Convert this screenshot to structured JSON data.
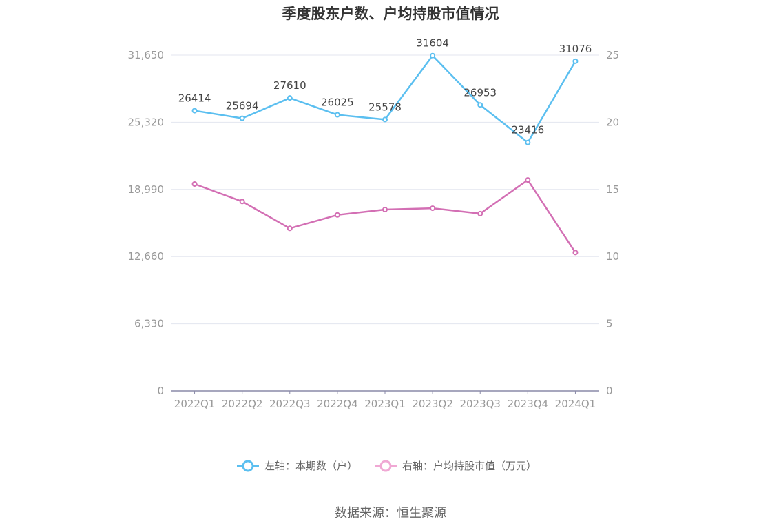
{
  "chart_data": {
    "type": "line",
    "title": "季度股东户数、户均持股市值情况",
    "categories": [
      "2022Q1",
      "2022Q2",
      "2022Q3",
      "2022Q4",
      "2023Q1",
      "2023Q2",
      "2023Q3",
      "2023Q4",
      "2024Q1"
    ],
    "series": [
      {
        "name": "左轴：本期数（户）",
        "axis": "left",
        "color": "#5bbff0",
        "values": [
          26414,
          25694,
          27610,
          26025,
          25578,
          31604,
          26953,
          23416,
          31076
        ],
        "data_labels": [
          "26414",
          "25694",
          "27610",
          "26025",
          "25578",
          "31604",
          "26953",
          "23416",
          "31076"
        ]
      },
      {
        "name": "右轴：户均持股市值（万元）",
        "axis": "right",
        "color": "#d36fb4",
        "legend_color": "#f0a8d4",
        "values": [
          15.4,
          14.1,
          12.1,
          13.1,
          13.5,
          13.6,
          13.2,
          15.7,
          10.3
        ]
      }
    ],
    "y_left": {
      "min": 0,
      "max": 31650,
      "ticks": [
        "0",
        "6,330",
        "12,660",
        "18,990",
        "25,320",
        "31,650"
      ]
    },
    "y_right": {
      "min": 0,
      "max": 25,
      "ticks": [
        "0",
        "5",
        "10",
        "15",
        "20",
        "25"
      ]
    },
    "grid": true,
    "legend_position": "bottom"
  },
  "source": "数据来源：恒生聚源"
}
